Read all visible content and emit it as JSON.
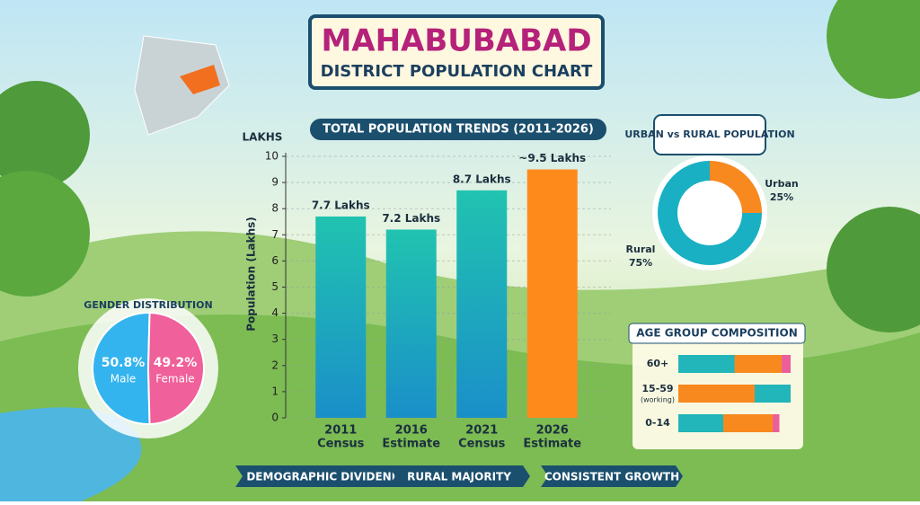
{
  "header": {
    "title": "MAHABUBABAD",
    "subtitle": "DISTRICT POPULATION CHART"
  },
  "tags": [
    "DEMOGRAPHIC DIVIDEND",
    "RURAL MAJORITY",
    "CONSISTENT GROWTH"
  ],
  "chart_data": [
    {
      "type": "bar",
      "title": "TOTAL POPULATION TRENDS (2011-2026)",
      "y_label": "Population (Lakhs)",
      "y_unit": "LAKHS",
      "categories": [
        "2011",
        "2016",
        "2021",
        "2026"
      ],
      "category_notes": [
        "Census",
        "Estimate",
        "Census",
        "Estimate"
      ],
      "values": [
        7.7,
        7.2,
        8.7,
        9.5
      ],
      "value_labels": [
        "7.7 Lakhs",
        "7.2 Lakhs",
        "8.7 Lakhs",
        "~9.5 Lakhs"
      ],
      "colors": [
        "#1bb3b8",
        "#1bb3b8",
        "#1bb3b8",
        "#ff8a1c"
      ],
      "ylim": [
        0,
        10
      ],
      "yticks": [
        0,
        1,
        2,
        3,
        4,
        5,
        6,
        7,
        8,
        9,
        10
      ],
      "grid": true
    },
    {
      "type": "donut",
      "title": "URBAN vs RURAL POPULATION",
      "categories": [
        "Urban",
        "Rural"
      ],
      "values": [
        25,
        75
      ],
      "value_labels": [
        "25%",
        "75%"
      ],
      "colors": [
        "#f7891f",
        "#1ab0c4"
      ]
    },
    {
      "type": "pie",
      "title": "GENDER DISTRIBUTION",
      "categories": [
        "Male",
        "Female"
      ],
      "values": [
        50.8,
        49.2
      ],
      "value_labels": [
        "50.8%",
        "49.2%"
      ],
      "colors": [
        "#33b4ee",
        "#f0609a"
      ]
    },
    {
      "type": "stacked-bar",
      "title": "AGE GROUP COMPOSITION",
      "categories": [
        "60+",
        "15-59",
        "0-14"
      ],
      "category_notes": [
        null,
        "(working)",
        null
      ],
      "series": [
        {
          "color": "#22b5b9",
          "values": [
            50,
            0,
            40
          ]
        },
        {
          "color": "#f7891f",
          "values": [
            42,
            68,
            44
          ]
        },
        {
          "color": "#ec5f9a",
          "values": [
            8,
            0,
            6
          ]
        },
        {
          "color": "#22b5b9",
          "values": [
            0,
            32,
            0
          ]
        }
      ]
    }
  ]
}
